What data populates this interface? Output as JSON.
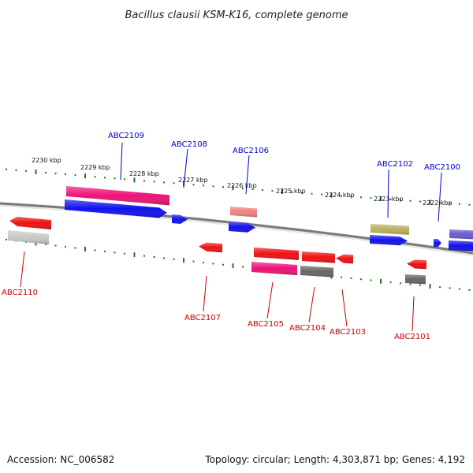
{
  "title": "Bacillus clausii KSM-K16, complete genome",
  "footer": {
    "accession": "Accession: NC_006582",
    "summary": "Topology: circular; Length: 4,303,871 bp; Genes: 4,192"
  },
  "colors": {
    "backbone": "#7a7a7a",
    "tick": "#1a7a1a",
    "label_top": "#0000cc",
    "label_bottom": "#cc0000",
    "red": "#ee1111",
    "blue": "#1111ee",
    "pink": "#ee1177",
    "lightpink": "#f08080",
    "gray": "#c8c8c8",
    "darkgray": "#666666",
    "olive": "#b8b060",
    "slate": "#6a5acd"
  },
  "scale_labels": [
    "2230 kbp",
    "2229 kbp",
    "2228 kbp",
    "2227 kbp",
    "2226 kbp",
    "2225 kbp",
    "2224 kbp",
    "2223 kbp",
    "2222 kbp"
  ],
  "genes_top_labels": [
    "ABC2109",
    "ABC2108",
    "ABC2106",
    "ABC2102",
    "ABC2100"
  ],
  "genes_bottom_labels": [
    "ABC2110",
    "ABC2107",
    "ABC2105",
    "ABC2104",
    "ABC2103",
    "ABC2101"
  ],
  "features": [
    {
      "id": "f-pink-top",
      "color": "pink",
      "strand": "forward",
      "label": "ABC2109"
    },
    {
      "id": "f-blue-long",
      "color": "blue",
      "strand": "forward",
      "label": "ABC2109"
    },
    {
      "id": "f-blue-small",
      "color": "blue",
      "strand": "forward",
      "label": "ABC2108"
    },
    {
      "id": "f-lightpink",
      "color": "lightpink",
      "strand": "forward",
      "label": "ABC2106"
    },
    {
      "id": "f-blue-2106",
      "color": "blue",
      "strand": "forward",
      "label": "ABC2106"
    },
    {
      "id": "f-olive",
      "color": "olive",
      "strand": "forward",
      "label": "ABC2102"
    },
    {
      "id": "f-blue-2102",
      "color": "blue",
      "strand": "forward",
      "label": "ABC2102"
    },
    {
      "id": "f-blue-tiny",
      "color": "blue",
      "strand": "forward",
      "label": "ABC2100"
    },
    {
      "id": "f-slate",
      "color": "slate",
      "strand": "forward",
      "label": "ABC2100"
    },
    {
      "id": "f-blue-edge",
      "color": "blue",
      "strand": "forward",
      "label": "ABC2100"
    },
    {
      "id": "f-red-2110",
      "color": "red",
      "strand": "reverse",
      "label": "ABC2110"
    },
    {
      "id": "f-gray-2110",
      "color": "gray",
      "strand": "reverse",
      "label": "ABC2110"
    },
    {
      "id": "f-red-2107",
      "color": "red",
      "strand": "reverse",
      "label": "ABC2107"
    },
    {
      "id": "f-red-2105",
      "color": "red",
      "strand": "reverse",
      "label": "ABC2105"
    },
    {
      "id": "f-pink-2105",
      "color": "pink",
      "strand": "reverse",
      "label": "ABC2105"
    },
    {
      "id": "f-red-2104",
      "color": "red",
      "strand": "reverse",
      "label": "ABC2104"
    },
    {
      "id": "f-dgray-2104",
      "color": "darkgray",
      "strand": "reverse",
      "label": "ABC2104"
    },
    {
      "id": "f-red-2103",
      "color": "red",
      "strand": "reverse",
      "label": "ABC2103"
    },
    {
      "id": "f-red-2101",
      "color": "red",
      "strand": "reverse",
      "label": "ABC2101"
    },
    {
      "id": "f-dgray-2101",
      "color": "darkgray",
      "strand": "reverse",
      "label": "ABC2101"
    }
  ]
}
